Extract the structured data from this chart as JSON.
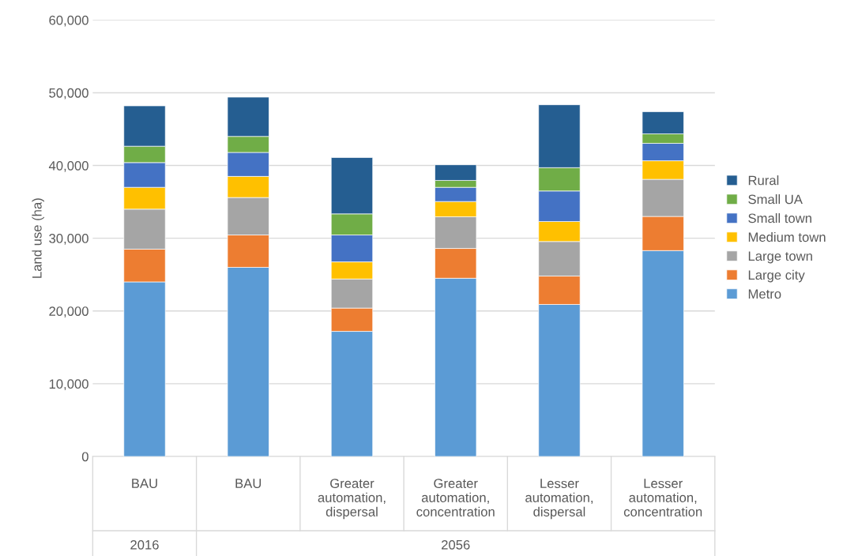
{
  "chart_data": {
    "type": "bar",
    "stacked": true,
    "ylabel": "Land use (ha)",
    "categories": [
      "BAU",
      "BAU",
      "Greater\nautomation,\ndispersal",
      "Greater\nautomation,\nconcentration",
      "Lesser\nautomation,\ndispersal",
      "Lesser\nautomation,\nconcentration"
    ],
    "series": [
      {
        "name": "Metro",
        "color": "#5b9bd5",
        "values": [
          24000,
          26000,
          17200,
          24500,
          20900,
          28300
        ]
      },
      {
        "name": "Large city",
        "color": "#ed7d31",
        "values": [
          4500,
          4450,
          3200,
          4100,
          3900,
          4700
        ]
      },
      {
        "name": "Large town",
        "color": "#a5a5a5",
        "values": [
          5500,
          5150,
          4000,
          4350,
          4750,
          5100
        ]
      },
      {
        "name": "Medium town",
        "color": "#ffc000",
        "values": [
          3000,
          2900,
          2350,
          2100,
          2750,
          2550
        ]
      },
      {
        "name": "Small town",
        "color": "#4472c4",
        "values": [
          3400,
          3300,
          3700,
          1950,
          4200,
          2400
        ]
      },
      {
        "name": "Small UA",
        "color": "#70ad47",
        "values": [
          2250,
          2200,
          2900,
          950,
          3200,
          1300
        ]
      },
      {
        "name": "Rural",
        "color": "#255e91",
        "values": [
          5550,
          5400,
          7750,
          2150,
          8650,
          3050
        ]
      }
    ],
    "ylim": [
      0,
      60000
    ],
    "yticks": [
      0,
      {
        "value": 10000,
        "label": "10,000"
      },
      {
        "value": 20000,
        "label": "20,000"
      },
      {
        "value": 30000,
        "label": "30,000"
      },
      {
        "value": 40000,
        "label": "40,000"
      },
      {
        "value": 50000,
        "label": "50,000"
      },
      {
        "value": 60000,
        "label": "60,000"
      }
    ],
    "grid": "y",
    "legend": "right",
    "annotations": [
      "2016",
      "2056"
    ]
  }
}
